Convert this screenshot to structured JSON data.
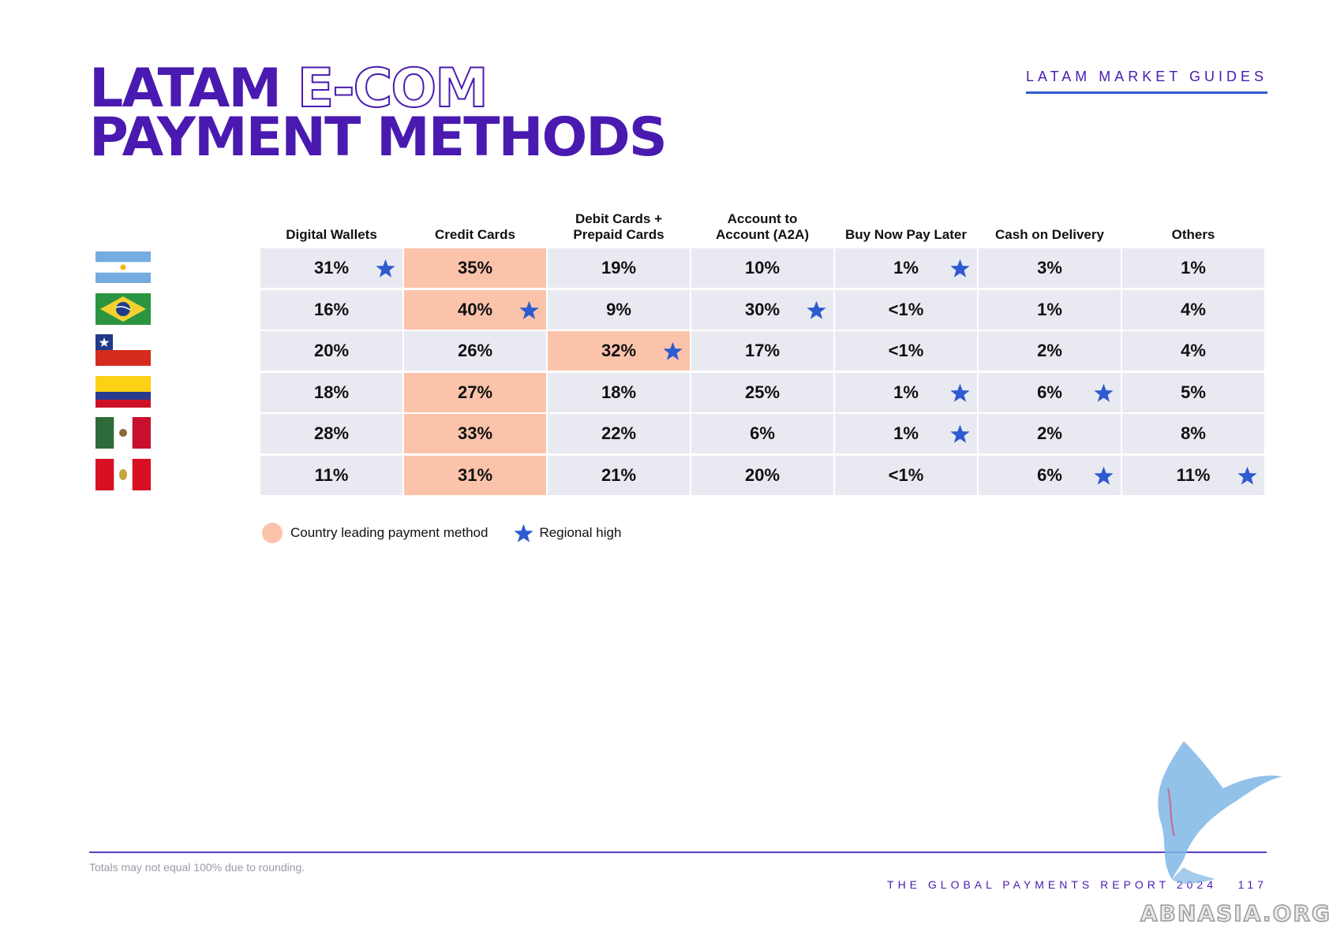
{
  "header": {
    "title_line1_solid": "LATAM",
    "title_line1_outline": "E-COM",
    "title_line2": "PAYMENT METHODS",
    "guide_label": "LATAM MARKET GUIDES"
  },
  "table": {
    "columns": [
      "Digital Wallets",
      "Credit Cards",
      "Debit Cards +\nPrepaid Cards",
      "Account to\nAccount (A2A)",
      "Buy Now Pay Later",
      "Cash on Delivery",
      "Others"
    ],
    "rows": [
      {
        "country": "Argentina",
        "flag": "argentina-flag",
        "values": [
          "31%",
          "35%",
          "19%",
          "10%",
          "1%",
          "3%",
          "1%"
        ],
        "lead": [
          1
        ],
        "stars": [
          0,
          4
        ]
      },
      {
        "country": "Brazil",
        "flag": "brazil-flag",
        "values": [
          "16%",
          "40%",
          "9%",
          "30%",
          "<1%",
          "1%",
          "4%"
        ],
        "lead": [
          1
        ],
        "stars": [
          1,
          3
        ]
      },
      {
        "country": "Chile",
        "flag": "chile-flag",
        "values": [
          "20%",
          "26%",
          "32%",
          "17%",
          "<1%",
          "2%",
          "4%"
        ],
        "lead": [
          2
        ],
        "stars": [
          2
        ]
      },
      {
        "country": "Colombia",
        "flag": "colombia-flag",
        "values": [
          "18%",
          "27%",
          "18%",
          "25%",
          "1%",
          "6%",
          "5%"
        ],
        "lead": [
          1
        ],
        "stars": [
          4,
          5
        ]
      },
      {
        "country": "Mexico",
        "flag": "mexico-flag",
        "values": [
          "28%",
          "33%",
          "22%",
          "6%",
          "1%",
          "2%",
          "8%"
        ],
        "lead": [
          1
        ],
        "stars": [
          4
        ]
      },
      {
        "country": "Peru",
        "flag": "peru-flag",
        "values": [
          "11%",
          "31%",
          "21%",
          "20%",
          "<1%",
          "6%",
          "11%"
        ],
        "lead": [
          1
        ],
        "stars": [
          5,
          6
        ]
      }
    ]
  },
  "legend": {
    "lead_label": "Country leading payment method",
    "star_label": "Regional high"
  },
  "footer": {
    "note": "Totals may not equal 100% due to rounding.",
    "report": "THE GLOBAL PAYMENTS REPORT 2024",
    "page": "117",
    "watermark": "ABNASIA.ORG"
  },
  "colors": {
    "brand": "#4a1ab0",
    "lead": "#fcc3ab",
    "cell": "#e9eaf1",
    "star": "#2f5bd0"
  }
}
